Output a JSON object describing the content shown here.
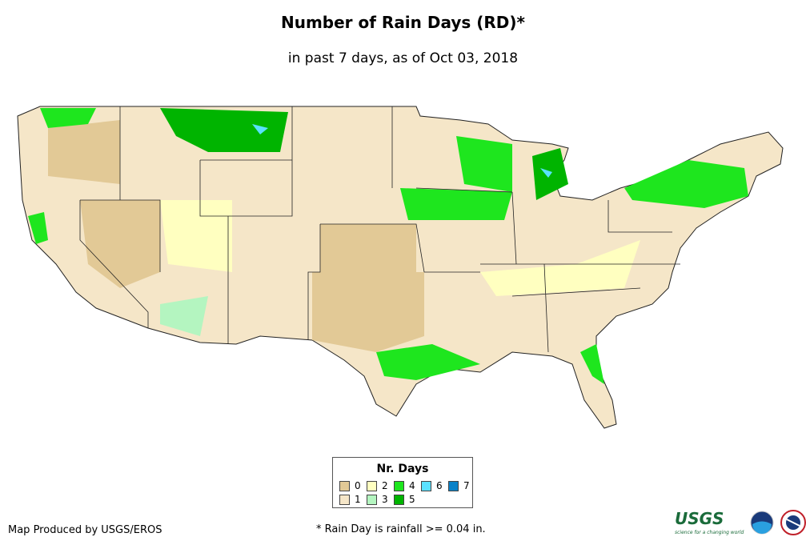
{
  "title": "Number of Rain Days (RD)*",
  "subtitle": "in past 7 days, as of Oct 03, 2018",
  "legend": {
    "title": "Nr. Days",
    "items": [
      {
        "label": "0",
        "color": "#e2c996"
      },
      {
        "label": "1",
        "color": "#f5e6c8"
      },
      {
        "label": "2",
        "color": "#ffffc0"
      },
      {
        "label": "3",
        "color": "#b4f5c0"
      },
      {
        "label": "4",
        "color": "#1ee61e"
      },
      {
        "label": "5",
        "color": "#00b400"
      },
      {
        "label": "6",
        "color": "#5ae1ff"
      },
      {
        "label": "7",
        "color": "#0a82c8"
      }
    ]
  },
  "credit": "Map Produced by USGS/EROS",
  "note": "* Rain Day is rainfall >= 0.04 in.",
  "logos": {
    "usgs": "USGS",
    "usgs_tagline": "science for a changing world",
    "noaa": "noaa",
    "nws": "National Weather Service"
  }
}
